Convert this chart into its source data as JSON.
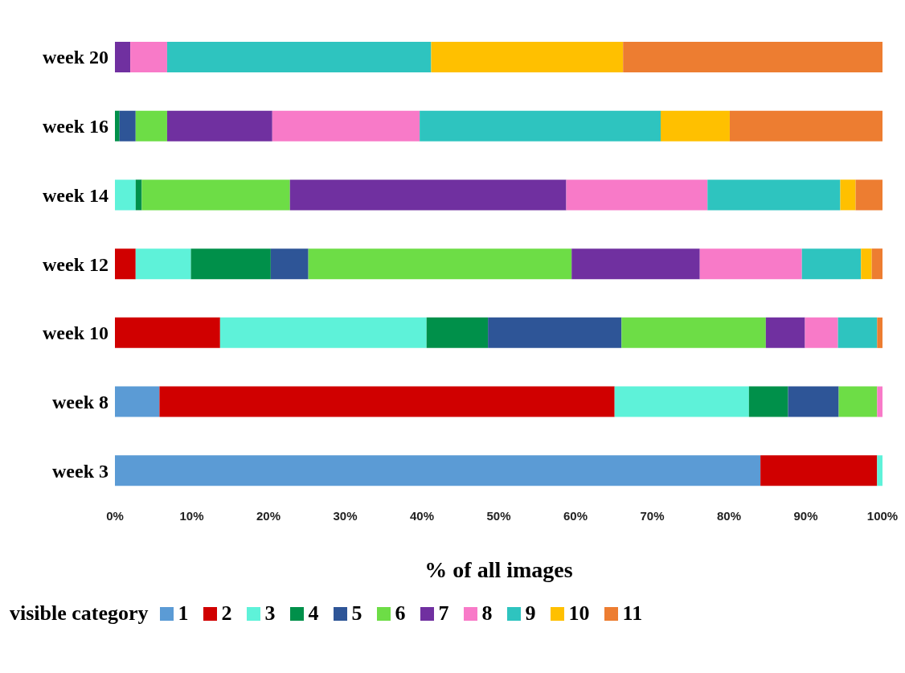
{
  "chart_data": {
    "type": "bar",
    "orientation": "horizontal",
    "stacked": true,
    "categories": [
      "week 20",
      "week 16",
      "week 14",
      "week 12",
      "week 10",
      "week 8",
      "week 3"
    ],
    "series": [
      {
        "name": "1",
        "color": "#5b9bd5",
        "values": [
          null,
          null,
          null,
          null,
          null,
          5.8,
          84.1
        ]
      },
      {
        "name": "2",
        "color": "#d00000",
        "values": [
          null,
          null,
          null,
          2.7,
          13.7,
          59.3,
          15.2
        ]
      },
      {
        "name": "3",
        "color": "#5ef2d9",
        "values": [
          null,
          null,
          2.7,
          7.2,
          26.9,
          17.5,
          0.7
        ]
      },
      {
        "name": "4",
        "color": "#00904a",
        "values": [
          null,
          0.6,
          0.8,
          10.4,
          8.0,
          5.1,
          null
        ]
      },
      {
        "name": "5",
        "color": "#2e5597",
        "values": [
          null,
          2.1,
          null,
          4.9,
          17.4,
          6.6,
          null
        ]
      },
      {
        "name": "6",
        "color": "#6ddd46",
        "values": [
          null,
          4.1,
          19.3,
          34.3,
          18.8,
          5.0,
          null
        ]
      },
      {
        "name": "7",
        "color": "#7030a0",
        "values": [
          2.0,
          13.7,
          36.0,
          16.7,
          5.1,
          null,
          null
        ]
      },
      {
        "name": "8",
        "color": "#f87ac8",
        "values": [
          4.8,
          19.2,
          18.4,
          13.3,
          4.3,
          0.7,
          null
        ]
      },
      {
        "name": "9",
        "color": "#2ec4bf",
        "values": [
          34.4,
          31.4,
          17.3,
          7.7,
          5.1,
          null,
          null
        ]
      },
      {
        "name": "10",
        "color": "#ffc000",
        "values": [
          25.0,
          9.0,
          2.0,
          1.4,
          null,
          null,
          null
        ]
      },
      {
        "name": "11",
        "color": "#ed7d31",
        "values": [
          33.8,
          19.9,
          3.5,
          1.4,
          0.7,
          null,
          null
        ]
      }
    ],
    "xlim": [
      0,
      100
    ],
    "xticks": [
      {
        "value": 0,
        "label": "0%"
      },
      {
        "value": 10,
        "label": "10%"
      },
      {
        "value": 20,
        "label": "20%"
      },
      {
        "value": 30,
        "label": "30%"
      },
      {
        "value": 40,
        "label": "40%"
      },
      {
        "value": 50,
        "label": "50%"
      },
      {
        "value": 60,
        "label": "60%"
      },
      {
        "value": 70,
        "label": "70%"
      },
      {
        "value": 80,
        "label": "80%"
      },
      {
        "value": 90,
        "label": "90%"
      },
      {
        "value": 100,
        "label": "100%"
      }
    ],
    "xlabel": "% of all images",
    "legend": "bottom",
    "legend_title": "visible category",
    "grid": false
  }
}
